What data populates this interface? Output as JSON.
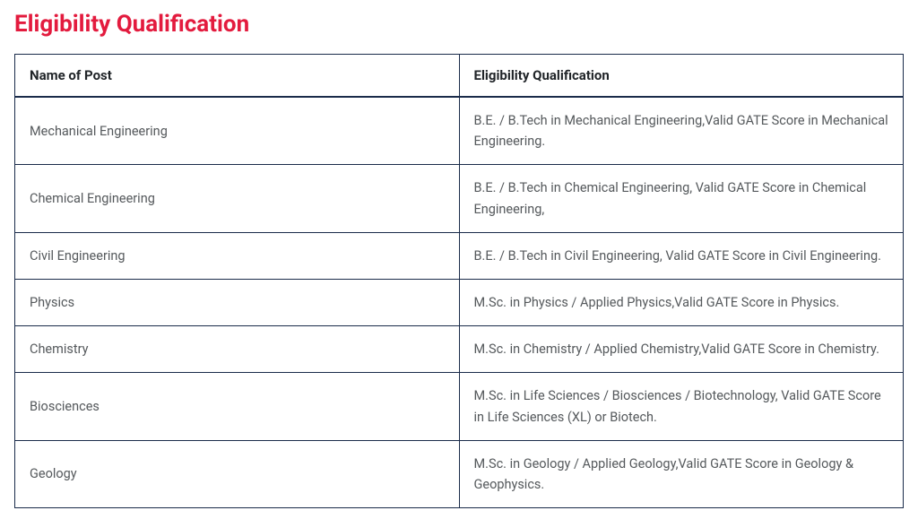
{
  "title": "Eligibility Qualification",
  "title_color": "#e31b3e",
  "table": {
    "border_color": "#1a2b4a",
    "header_text_color": "#212529",
    "cell_text_color": "#55595c",
    "columns": [
      "Name of Post",
      "Eligibility Qualification"
    ],
    "rows": [
      [
        "Mechanical Engineering",
        "B.E. / B.Tech in Mechanical Engineering,Valid GATE Score in Mechanical Engineering."
      ],
      [
        "Chemical Engineering",
        "B.E. / B.Tech in Chemical Engineering, Valid GATE Score in Chemical Engineering,"
      ],
      [
        "Civil Engineering",
        "B.E. / B.Tech in Civil Engineering, Valid GATE Score in Civil Engineering."
      ],
      [
        "Physics",
        "M.Sc. in Physics / Applied Physics,Valid GATE Score in Physics."
      ],
      [
        "Chemistry",
        "M.Sc. in Chemistry / Applied Chemistry,Valid GATE Score in Chemistry."
      ],
      [
        "Biosciences",
        "M.Sc. in Life Sciences / Biosciences / Biotechnology, Valid GATE Score in Life Sciences (XL) or Biotech."
      ],
      [
        "Geology",
        "M.Sc. in Geology / Applied Geology,Valid GATE Score in Geology & Geophysics."
      ]
    ]
  }
}
